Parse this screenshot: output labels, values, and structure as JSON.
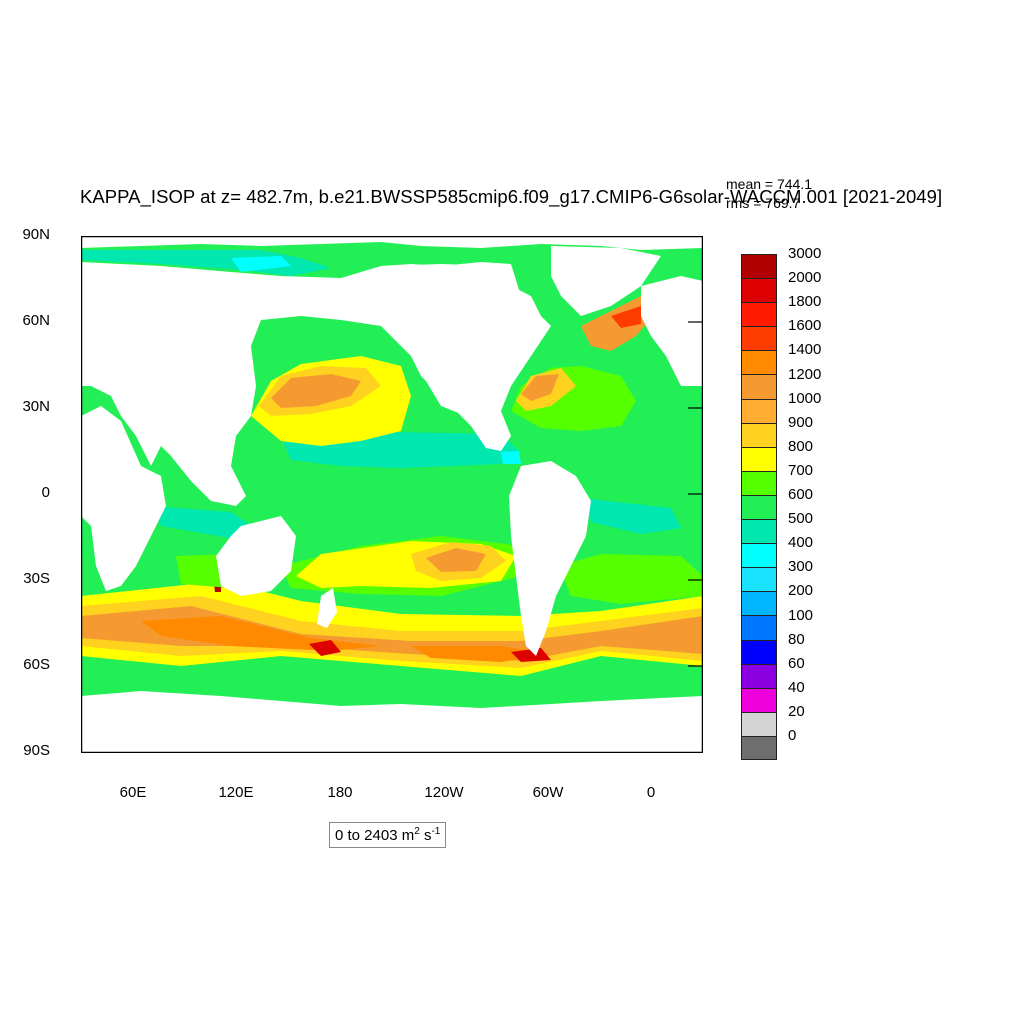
{
  "title": "KAPPA_ISOP at z= 482.7m, b.e21.BWSSP585cmip6.f09_g17.CMIP6-G6solar-WACCM.001 [2021-2049]",
  "stats": {
    "mean": "mean = 744.1",
    "rms": "rms = 769.7"
  },
  "axes": {
    "lat_labels": [
      "90N",
      "60N",
      "30N",
      "0",
      "30S",
      "60S",
      "90S"
    ],
    "lon_labels": [
      "60E",
      "120E",
      "180",
      "120W",
      "60W",
      "0"
    ]
  },
  "colorbar": {
    "labels": [
      "3000",
      "2000",
      "1800",
      "1600",
      "1400",
      "1200",
      "1000",
      "900",
      "800",
      "700",
      "600",
      "500",
      "400",
      "300",
      "200",
      "100",
      "80",
      "60",
      "40",
      "20",
      "0"
    ],
    "colors": [
      "#b00000",
      "#dd0000",
      "#ff1a00",
      "#ff3c00",
      "#ff8a00",
      "#f59a30",
      "#ffad33",
      "#ffd21f",
      "#ffff00",
      "#55ff00",
      "#22ee55",
      "#00e7b0",
      "#00ffff",
      "#19e3ff",
      "#00b7ff",
      "#0077ff",
      "#0000ff",
      "#8a00e0",
      "#ee00dd",
      "#d4d4d4",
      "#6e6e6e"
    ]
  },
  "range": {
    "prefix": "0 to 2403 m",
    "mid": " s",
    "exp1": "2",
    "exp2": "-1"
  },
  "map_colors": {
    "land": "#ffffff",
    "ocean_base": "#22ee55",
    "frame": "#000000"
  }
}
